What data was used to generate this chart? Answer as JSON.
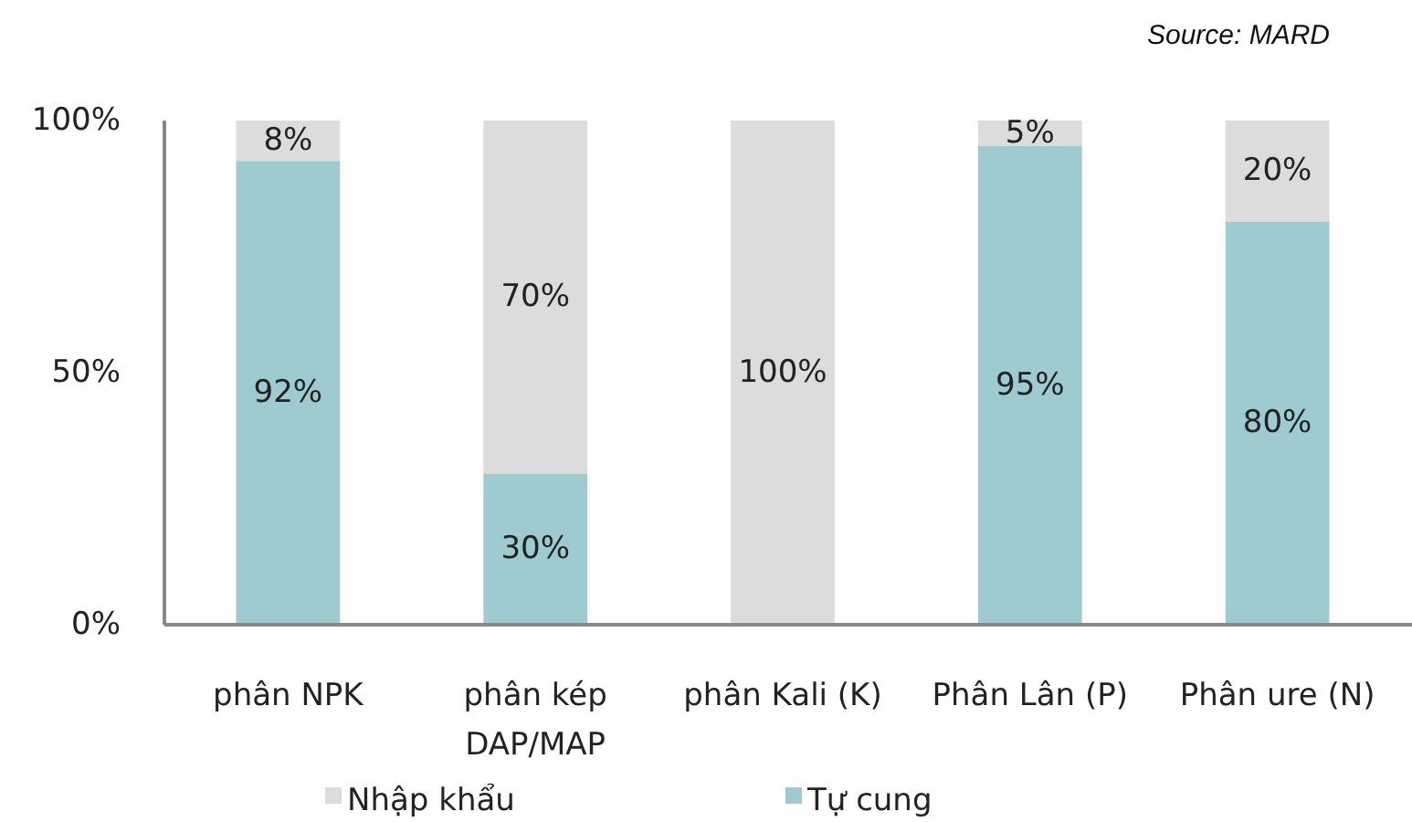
{
  "chart_data": {
    "type": "bar",
    "stacked": true,
    "categories": [
      "phân NPK",
      "phân kép DAP/MAP",
      "phân Kali (K)",
      "Phân Lân (P)",
      "Phân ure (N)"
    ],
    "series": [
      {
        "name": "Tự cung",
        "color": "#9dcbcf",
        "values": [
          92,
          30,
          0,
          95,
          80
        ],
        "value_labels": [
          "92%",
          "30%",
          null,
          "95%",
          "80%"
        ]
      },
      {
        "name": "Nhập khẩu",
        "color": "#dcdcdc",
        "values": [
          8,
          70,
          100,
          5,
          20
        ],
        "value_labels": [
          "8%",
          "70%",
          "100%",
          "5%",
          "20%"
        ]
      }
    ],
    "ylim": [
      0,
      100
    ],
    "yticks": [
      {
        "value": 0,
        "label": "0%"
      },
      {
        "value": 50,
        "label": "50%"
      },
      {
        "value": 100,
        "label": "100%"
      }
    ],
    "legend": "bottom",
    "annotations": [
      "Source: MARD"
    ]
  }
}
